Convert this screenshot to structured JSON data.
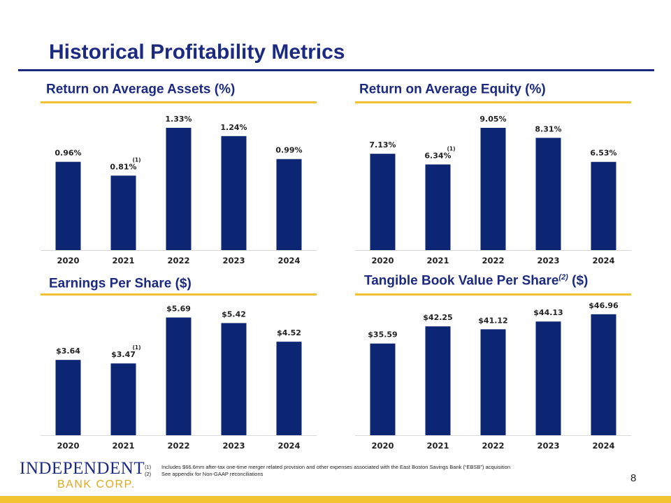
{
  "title": "Historical Profitability Metrics",
  "colors": {
    "navy": "#0d2673",
    "title_blue": "#1b2a80",
    "gold": "#f2c231",
    "axis": "#d9d9d9"
  },
  "chart_data": [
    {
      "type": "bar",
      "title": "Return on Average Assets (%)",
      "title_sup": "",
      "title_suffix": "",
      "categories": [
        "2020",
        "2021",
        "2022",
        "2023",
        "2024"
      ],
      "values": [
        0.96,
        0.81,
        1.33,
        1.24,
        0.99
      ],
      "labels": [
        "0.96%",
        "0.81%",
        "1.33%",
        "1.24%",
        "0.99%"
      ],
      "footnote_marks": [
        "",
        "(1)",
        "",
        "",
        ""
      ],
      "ylim": [
        0,
        1.55
      ]
    },
    {
      "type": "bar",
      "title": "Return on Average Equity (%)",
      "title_sup": "",
      "title_suffix": "",
      "categories": [
        "2020",
        "2021",
        "2022",
        "2023",
        "2024"
      ],
      "values": [
        7.13,
        6.34,
        9.05,
        8.31,
        6.53
      ],
      "labels": [
        "7.13%",
        "6.34%",
        "9.05%",
        "8.31%",
        "6.53%"
      ],
      "footnote_marks": [
        "",
        "(1)",
        "",
        "",
        ""
      ],
      "ylim": [
        0,
        10.55
      ]
    },
    {
      "type": "bar",
      "title": "Earnings Per Share ($)",
      "title_sup": "",
      "title_suffix": "",
      "categories": [
        "2020",
        "2021",
        "2022",
        "2023",
        "2024"
      ],
      "values": [
        3.64,
        3.47,
        5.69,
        5.42,
        4.52
      ],
      "labels": [
        "$3.64",
        "$3.47",
        "$5.69",
        "$5.42",
        "$4.52"
      ],
      "footnote_marks": [
        "",
        "(1)",
        "",
        "",
        ""
      ],
      "ylim": [
        0,
        6.55
      ]
    },
    {
      "type": "bar",
      "title": "Tangible Book Value Per Share",
      "title_sup": "(2)",
      "title_suffix": " ($)",
      "categories": [
        "2020",
        "2021",
        "2022",
        "2023",
        "2024"
      ],
      "values": [
        35.59,
        42.25,
        41.12,
        44.13,
        46.96
      ],
      "labels": [
        "$35.59",
        "$42.25",
        "$41.12",
        "$44.13",
        "$46.96"
      ],
      "footnote_marks": [
        "",
        "",
        "",
        "",
        ""
      ],
      "ylim": [
        0,
        52.6
      ]
    }
  ],
  "footnotes": [
    {
      "mark": "(1)",
      "text": "Includes $66.6mm after-tax one-time merger related provision and other expenses associated with the East Boston Savings Bank (“EBSB”) acquisition"
    },
    {
      "mark": "(2)",
      "text": "See appendix for Non-GAAP reconciliations"
    }
  ],
  "logo": {
    "line1": "INDEPENDENT",
    "line2": "BANK CORP."
  },
  "page_number": "8"
}
